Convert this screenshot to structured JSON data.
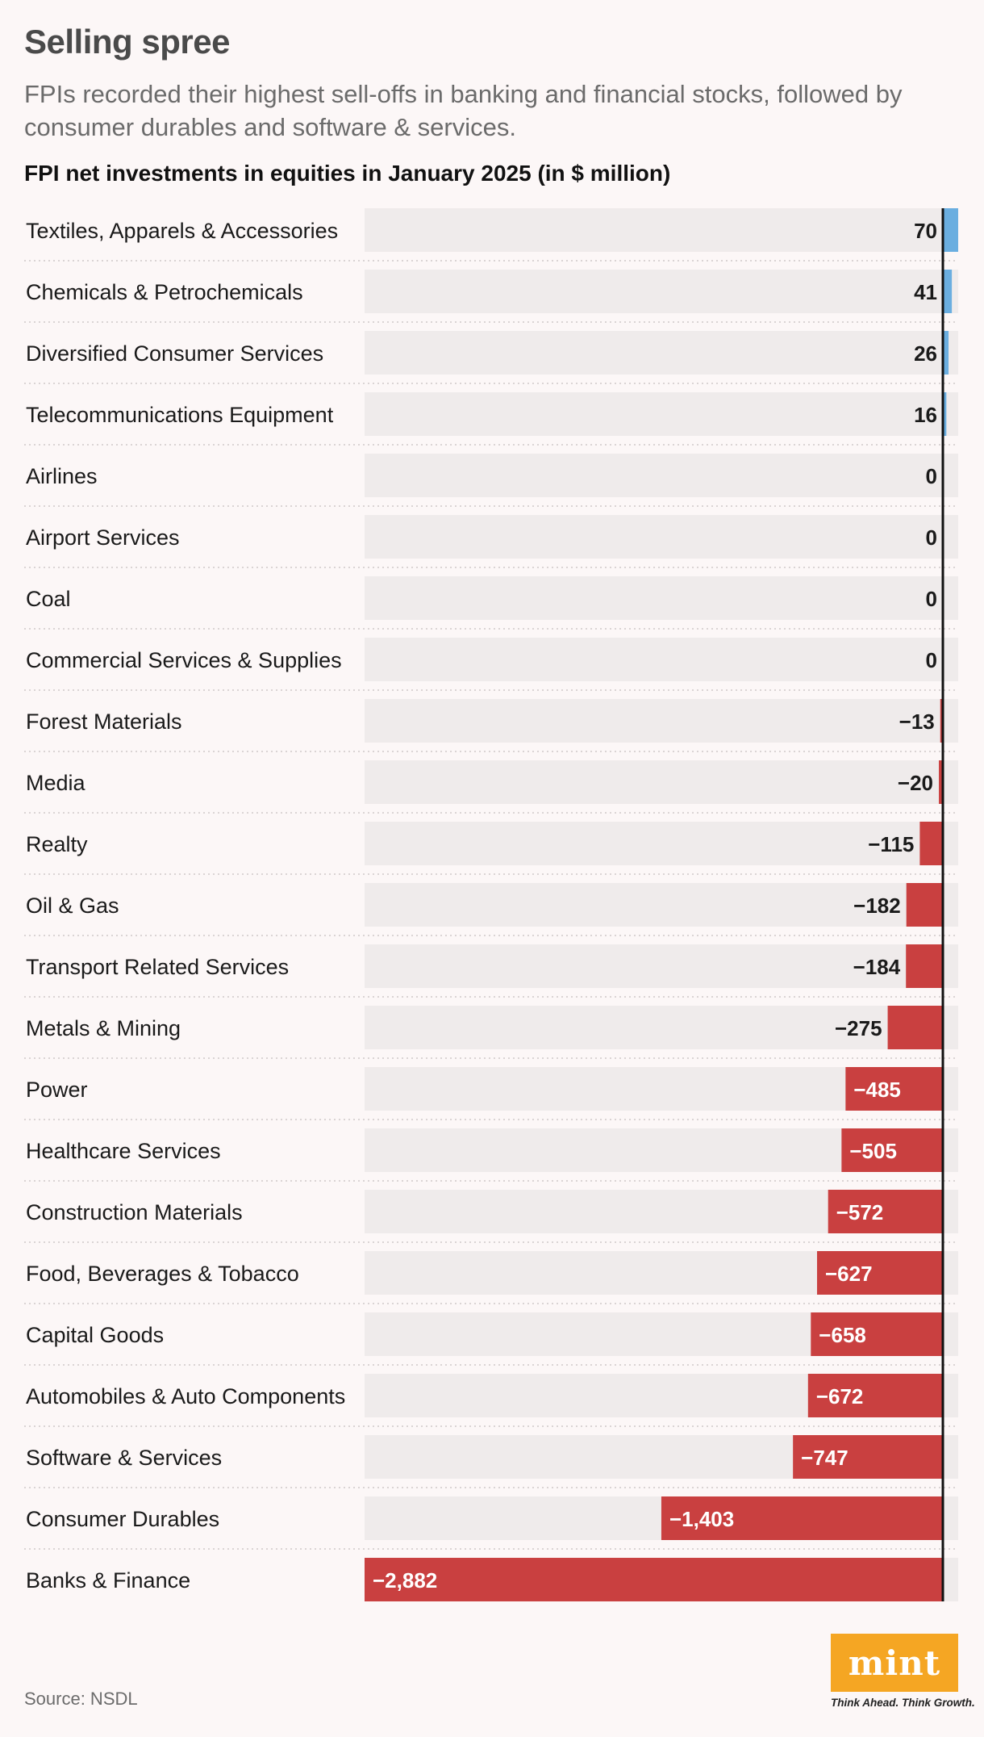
{
  "header": {
    "title": "Selling spree",
    "subtitle": "FPIs recorded their highest sell-offs in banking and financial stocks, followed by consumer durables and software & services.",
    "chart_title": "FPI net investments in equities in January 2025 (in $ million)"
  },
  "footer": {
    "source": "Source: NSDL",
    "logo_text": "mint",
    "logo_tagline": "Think Ahead. Think Growth."
  },
  "colors": {
    "positive": "#6aaee0",
    "negative": "#c94040",
    "track": "#efebeb",
    "baseline": "#111111"
  },
  "chart_data": {
    "type": "bar",
    "orientation": "horizontal",
    "title": "FPI net investments in equities in January 2025 (in $ million)",
    "categories": [
      "Textiles, Apparels & Accessories",
      "Chemicals & Petrochemicals",
      "Diversified Consumer Services",
      "Telecommunications Equipment",
      "Airlines",
      "Airport Services",
      "Coal",
      "Commercial Services & Supplies",
      "Forest Materials",
      "Media",
      "Realty",
      "Oil & Gas",
      "Transport Related Services",
      "Metals & Mining",
      "Power",
      "Healthcare Services",
      "Construction Materials",
      "Food, Beverages & Tobacco",
      "Capital Goods",
      "Automobiles & Auto Components",
      "Software & Services",
      "Consumer Durables",
      "Banks & Finance"
    ],
    "values": [
      70,
      41,
      26,
      16,
      0,
      0,
      0,
      0,
      -13,
      -20,
      -115,
      -182,
      -184,
      -275,
      -485,
      -505,
      -572,
      -627,
      -658,
      -672,
      -747,
      -1403,
      -2882
    ],
    "labels": [
      "70",
      "41",
      "26",
      "16",
      "0",
      "0",
      "0",
      "0",
      "−13",
      "−20",
      "−115",
      "−182",
      "−184",
      "−275",
      "−485",
      "−505",
      "−572",
      "−627",
      "−658",
      "−672",
      "−747",
      "−1,403",
      "−2,882"
    ],
    "xlim": [
      -2882,
      70
    ]
  }
}
